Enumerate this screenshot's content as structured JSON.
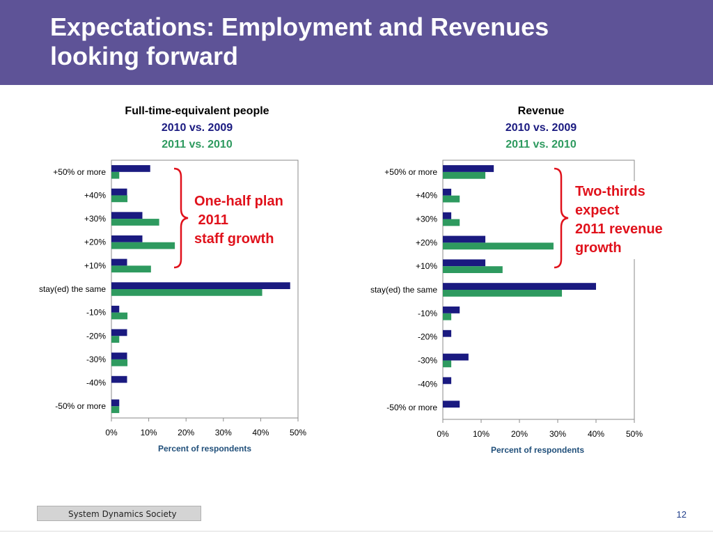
{
  "slide": {
    "title_lines": [
      "Expectations: Employment and Revenues",
      "looking forward"
    ],
    "footer_logo": "System Dynamics Society",
    "page_number": "12"
  },
  "colors": {
    "header": "#5e5397",
    "series1": "#1a1a80",
    "series2": "#2e9a5f",
    "annotation": "#e0111b"
  },
  "chart_data": [
    {
      "type": "bar",
      "orientation": "horizontal",
      "title": "Full-time-equivalent people",
      "series_titles": [
        "2010 vs. 2009",
        "2011 vs. 2010"
      ],
      "xlabel": "Percent of respondents",
      "xlim": [
        0,
        50
      ],
      "xticks": [
        "0%",
        "10%",
        "20%",
        "30%",
        "40%",
        "50%"
      ],
      "categories": [
        "+50% or more",
        "+40%",
        "+30%",
        "+20%",
        "+10%",
        "stay(ed) the same",
        "-10%",
        "-20%",
        "-30%",
        "-40%",
        "-50% or more"
      ],
      "series": [
        {
          "values": [
            10.4,
            4.2,
            8.3,
            8.3,
            4.2,
            47.9,
            2.1,
            4.2,
            4.2,
            4.2,
            2.1
          ]
        },
        {
          "values": [
            2.1,
            4.3,
            12.8,
            17.0,
            10.6,
            40.4,
            4.3,
            2.1,
            4.3,
            0,
            2.1
          ]
        }
      ],
      "annotation": [
        "One-half plan",
        " 2011",
        "staff growth"
      ]
    },
    {
      "type": "bar",
      "orientation": "horizontal",
      "title": "Revenue",
      "series_titles": [
        "2010 vs. 2009",
        "2011 vs. 2010"
      ],
      "xlabel": "Percent of respondents",
      "xlim": [
        0,
        50
      ],
      "xticks": [
        "0%",
        "10%",
        "20%",
        "30%",
        "40%",
        "50%"
      ],
      "categories": [
        "+50% or more",
        "+40%",
        "+30%",
        "+20%",
        "+10%",
        "stay(ed) the same",
        "-10%",
        "-20%",
        "-30%",
        "-40%",
        "-50% or more"
      ],
      "series": [
        {
          "values": [
            13.3,
            2.2,
            2.2,
            11.1,
            11.1,
            40.0,
            4.4,
            2.2,
            6.7,
            2.2,
            4.4
          ]
        },
        {
          "values": [
            11.1,
            4.4,
            4.4,
            28.9,
            15.6,
            31.1,
            2.2,
            0,
            2.2,
            0,
            0
          ]
        }
      ],
      "annotation": [
        "Two-thirds",
        "expect",
        "2011 revenue",
        "growth"
      ]
    }
  ]
}
